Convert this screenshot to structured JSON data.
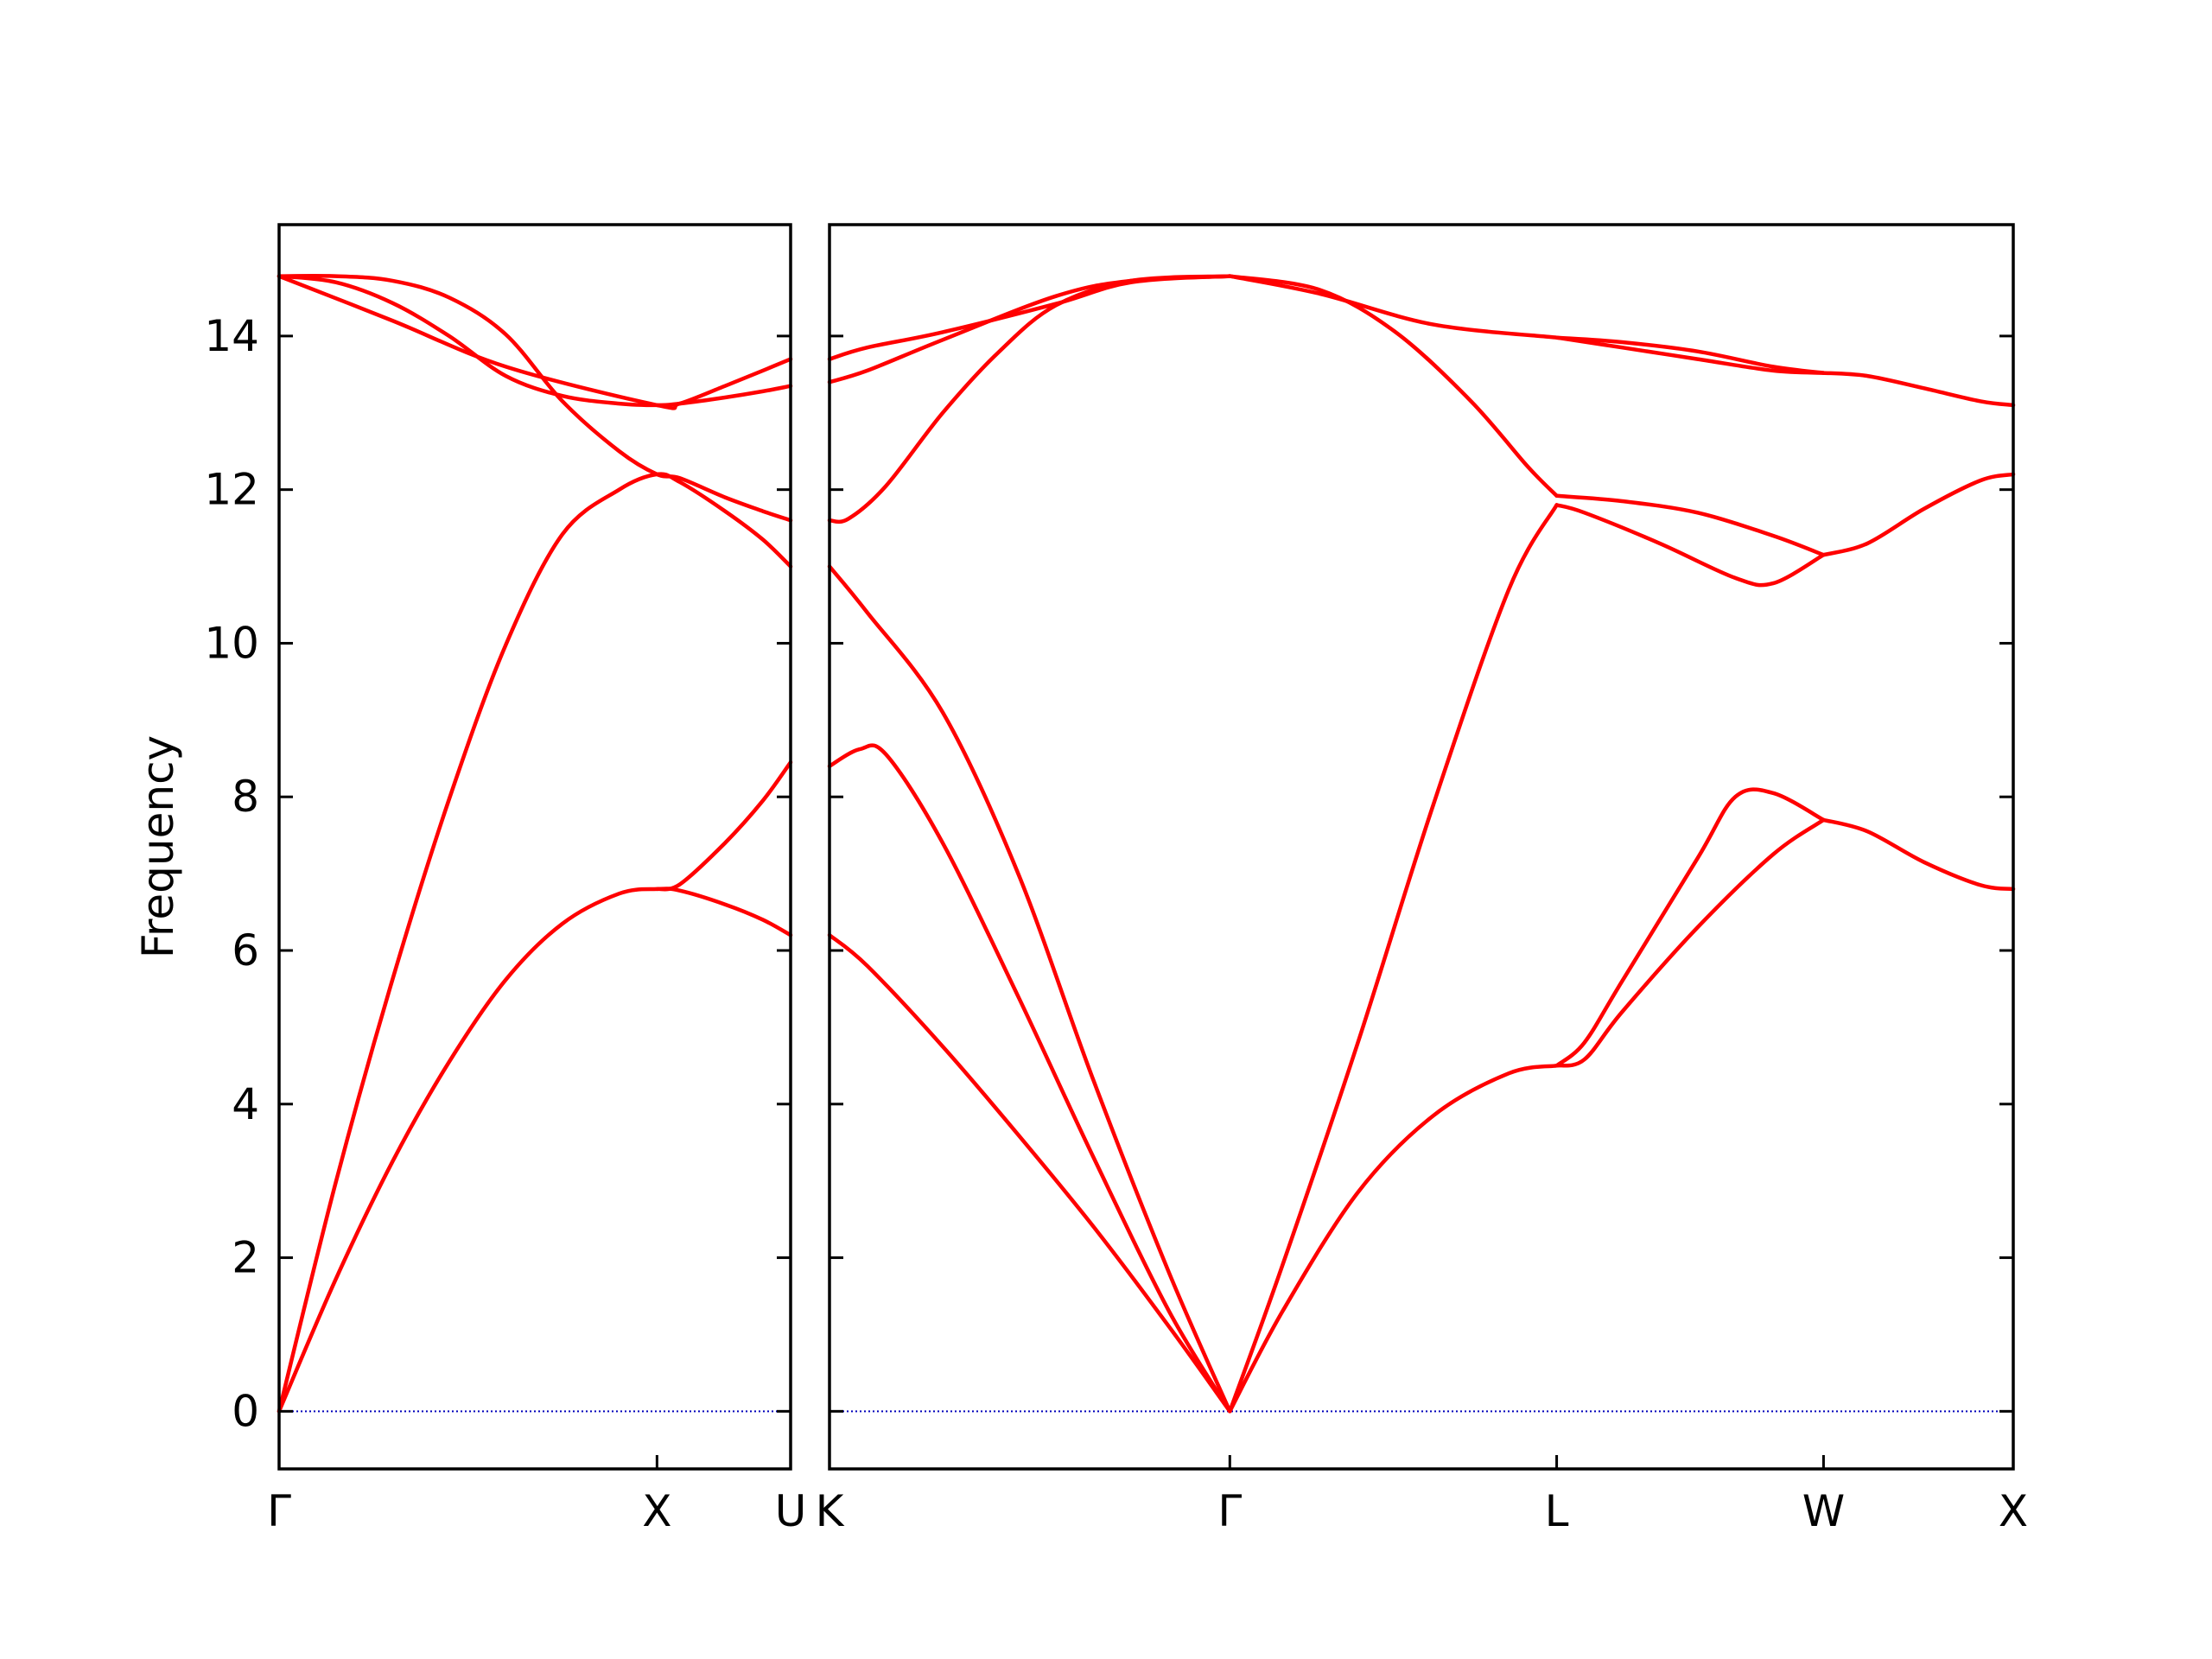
{
  "chart_data": {
    "type": "line",
    "ylabel": "Frequency",
    "ylim": [
      -0.75,
      15.45
    ],
    "yticks": [
      0,
      2,
      4,
      6,
      8,
      10,
      12,
      14
    ],
    "zero_line_color": "#0000bb",
    "band_color": "#ff0000",
    "panels": [
      {
        "xlim": [
          0,
          1.3536
        ],
        "ticks": [
          {
            "x": 0,
            "label": "Γ"
          },
          {
            "x": 1.0,
            "label": "X"
          },
          {
            "x": 1.3536,
            "label": "U"
          }
        ],
        "bands": [
          [
            [
              0,
              0
            ],
            [
              0.15,
              1.72
            ],
            [
              0.3,
              3.25
            ],
            [
              0.45,
              4.55
            ],
            [
              0.6,
              5.62
            ],
            [
              0.75,
              6.35
            ],
            [
              0.9,
              6.74
            ],
            [
              1.0,
              6.8
            ],
            [
              1.06,
              6.78
            ],
            [
              1.18,
              6.6
            ],
            [
              1.28,
              6.4
            ],
            [
              1.3536,
              6.2
            ]
          ],
          [
            [
              0,
              0
            ],
            [
              0.15,
              2.98
            ],
            [
              0.3,
              5.62
            ],
            [
              0.45,
              7.97
            ],
            [
              0.6,
              9.98
            ],
            [
              0.75,
              11.42
            ],
            [
              0.9,
              12.0
            ],
            [
              1.0,
              12.2
            ],
            [
              1.06,
              12.1
            ],
            [
              1.18,
              11.72
            ],
            [
              1.28,
              11.35
            ],
            [
              1.3536,
              11.0
            ]
          ],
          [
            [
              0,
              14.78
            ],
            [
              0.15,
              14.7
            ],
            [
              0.3,
              14.43
            ],
            [
              0.45,
              14.0
            ],
            [
              0.6,
              13.48
            ],
            [
              0.75,
              13.22
            ],
            [
              0.9,
              13.12
            ],
            [
              1.0,
              13.1
            ],
            [
              1.06,
              13.12
            ],
            [
              1.18,
              13.2
            ],
            [
              1.28,
              13.28
            ],
            [
              1.3536,
              13.35
            ]
          ],
          [
            [
              0,
              14.78
            ],
            [
              0.15,
              14.78
            ],
            [
              0.3,
              14.72
            ],
            [
              0.45,
              14.5
            ],
            [
              0.6,
              14.02
            ],
            [
              0.75,
              13.15
            ],
            [
              0.9,
              12.5
            ],
            [
              1.0,
              12.2
            ],
            [
              1.06,
              12.15
            ],
            [
              1.18,
              11.9
            ],
            [
              1.28,
              11.72
            ],
            [
              1.3536,
              11.6
            ]
          ],
          [
            [
              0,
              14.78
            ],
            [
              0.3,
              14.2
            ],
            [
              0.6,
              13.6
            ],
            [
              1.0,
              13.1
            ],
            [
              1.06,
              13.12
            ],
            [
              1.18,
              13.35
            ],
            [
              1.28,
              13.55
            ],
            [
              1.3536,
              13.7
            ]
          ],
          [
            [
              1.0,
              6.8
            ],
            [
              1.06,
              6.86
            ],
            [
              1.18,
              7.4
            ],
            [
              1.28,
              7.95
            ],
            [
              1.3536,
              8.45
            ]
          ]
        ]
      },
      {
        "xlim": [
          0,
          3.1365
        ],
        "ticks": [
          {
            "x": 0,
            "label": "K"
          },
          {
            "x": 1.0607,
            "label": "Γ"
          },
          {
            "x": 1.9267,
            "label": "L"
          },
          {
            "x": 2.6338,
            "label": "W"
          },
          {
            "x": 3.1365,
            "label": "X"
          }
        ],
        "bands": [
          [
            [
              0,
              6.2
            ],
            [
              0.1,
              5.8
            ],
            [
              0.3,
              4.75
            ],
            [
              0.5,
              3.6
            ],
            [
              0.7,
              2.4
            ],
            [
              0.9,
              1.1
            ],
            [
              1.0607,
              0
            ]
          ],
          [
            [
              0,
              8.4
            ],
            [
              0.08,
              8.62
            ],
            [
              0.15,
              8.55
            ],
            [
              0.3,
              7.4
            ],
            [
              0.5,
              5.4
            ],
            [
              0.7,
              3.3
            ],
            [
              0.9,
              1.3
            ],
            [
              1.0607,
              0
            ]
          ],
          [
            [
              0,
              11.0
            ],
            [
              0.1,
              10.4
            ],
            [
              0.3,
              9.1
            ],
            [
              0.5,
              7.0
            ],
            [
              0.7,
              4.3
            ],
            [
              0.9,
              1.8
            ],
            [
              1.0607,
              0
            ]
          ],
          [
            [
              0,
              11.6
            ],
            [
              0.05,
              11.62
            ],
            [
              0.15,
              12.05
            ],
            [
              0.3,
              13.0
            ],
            [
              0.45,
              13.8
            ],
            [
              0.6,
              14.4
            ],
            [
              0.8,
              14.72
            ],
            [
              1.0607,
              14.78
            ]
          ],
          [
            [
              0,
              13.4
            ],
            [
              0.1,
              13.55
            ],
            [
              0.3,
              13.95
            ],
            [
              0.6,
              14.52
            ],
            [
              0.8,
              14.72
            ],
            [
              1.0607,
              14.78
            ]
          ],
          [
            [
              0,
              13.7
            ],
            [
              0.1,
              13.85
            ],
            [
              0.3,
              14.05
            ],
            [
              0.6,
              14.42
            ],
            [
              0.8,
              14.7
            ],
            [
              1.0607,
              14.78
            ]
          ],
          [
            [
              1.0607,
              0
            ],
            [
              1.2,
              1.9
            ],
            [
              1.4,
              4.8
            ],
            [
              1.6,
              7.9
            ],
            [
              1.8,
              10.7
            ],
            [
              1.9267,
              11.8
            ]
          ],
          [
            [
              1.0607,
              0
            ],
            [
              1.2,
              1.3
            ],
            [
              1.4,
              2.85
            ],
            [
              1.6,
              3.85
            ],
            [
              1.8,
              4.4
            ],
            [
              1.9267,
              4.5
            ]
          ],
          [
            [
              1.0607,
              14.78
            ],
            [
              1.3,
              14.6
            ],
            [
              1.5,
              14.05
            ],
            [
              1.7,
              13.15
            ],
            [
              1.85,
              12.3
            ],
            [
              1.9267,
              11.92
            ]
          ],
          [
            [
              1.0607,
              14.78
            ],
            [
              1.3,
              14.55
            ],
            [
              1.6,
              14.15
            ],
            [
              1.9267,
              13.98
            ]
          ],
          [
            [
              1.9267,
              4.5
            ],
            [
              2.0,
              4.58
            ],
            [
              2.1,
              5.2
            ],
            [
              2.3,
              6.3
            ],
            [
              2.5,
              7.25
            ],
            [
              2.6338,
              7.7
            ]
          ],
          [
            [
              1.9267,
              4.5
            ],
            [
              2.0,
              4.8
            ],
            [
              2.1,
              5.6
            ],
            [
              2.3,
              7.2
            ],
            [
              2.4,
              8.0
            ],
            [
              2.5,
              8.05
            ],
            [
              2.6338,
              7.7
            ]
          ],
          [
            [
              1.9267,
              11.8
            ],
            [
              2.0,
              11.7
            ],
            [
              2.2,
              11.3
            ],
            [
              2.4,
              10.85
            ],
            [
              2.5,
              10.78
            ],
            [
              2.6338,
              11.15
            ]
          ],
          [
            [
              1.9267,
              11.92
            ],
            [
              2.1,
              11.85
            ],
            [
              2.3,
              11.7
            ],
            [
              2.5,
              11.4
            ],
            [
              2.6338,
              11.15
            ]
          ],
          [
            [
              1.9267,
              13.98
            ],
            [
              2.1,
              13.85
            ],
            [
              2.3,
              13.7
            ],
            [
              2.5,
              13.55
            ],
            [
              2.6338,
              13.52
            ]
          ],
          [
            [
              1.9267,
              13.98
            ],
            [
              2.1,
              13.92
            ],
            [
              2.3,
              13.8
            ],
            [
              2.5,
              13.6
            ],
            [
              2.6338,
              13.52
            ]
          ],
          [
            [
              2.6338,
              7.7
            ],
            [
              2.75,
              7.55
            ],
            [
              2.9,
              7.15
            ],
            [
              3.05,
              6.85
            ],
            [
              3.1365,
              6.8
            ]
          ],
          [
            [
              2.6338,
              11.15
            ],
            [
              2.75,
              11.3
            ],
            [
              2.9,
              11.75
            ],
            [
              3.05,
              12.12
            ],
            [
              3.1365,
              12.2
            ]
          ],
          [
            [
              2.6338,
              13.52
            ],
            [
              2.75,
              13.48
            ],
            [
              2.9,
              13.32
            ],
            [
              3.05,
              13.15
            ],
            [
              3.1365,
              13.1
            ]
          ]
        ]
      }
    ]
  }
}
